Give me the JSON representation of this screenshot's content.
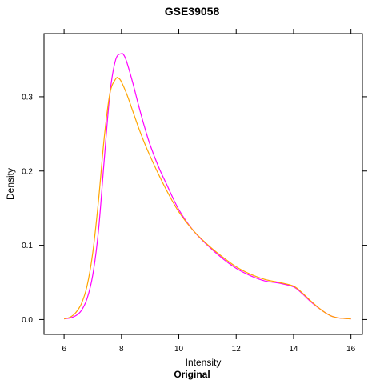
{
  "chart_data": {
    "type": "line",
    "title": "GSE39058",
    "xlabel": "Intensity",
    "ylabel": "Density",
    "sub": "Original",
    "xlim": [
      5.3,
      16.4
    ],
    "ylim": [
      -0.02,
      0.385
    ],
    "xticks": [
      6,
      8,
      10,
      12,
      14,
      16
    ],
    "yticks": [
      0.0,
      0.1,
      0.2,
      0.3
    ],
    "ytick_labels": [
      "0.0",
      "0.1",
      "0.2",
      "0.3"
    ],
    "grid": false,
    "legend": "none",
    "series": [
      {
        "color": "#ff00ff",
        "x": [
          6.0,
          6.2,
          6.4,
          6.6,
          6.8,
          7.0,
          7.2,
          7.4,
          7.6,
          7.8,
          8.0,
          8.1,
          8.2,
          8.4,
          8.6,
          8.8,
          9.0,
          9.3,
          9.6,
          10.0,
          10.5,
          11.0,
          11.5,
          12.0,
          12.5,
          13.0,
          13.5,
          14.0,
          14.3,
          14.6,
          15.0,
          15.3,
          15.6,
          16.0
        ],
        "y": [
          0.001,
          0.002,
          0.005,
          0.012,
          0.028,
          0.06,
          0.12,
          0.215,
          0.305,
          0.35,
          0.358,
          0.355,
          0.345,
          0.318,
          0.288,
          0.26,
          0.235,
          0.205,
          0.18,
          0.148,
          0.12,
          0.1,
          0.083,
          0.069,
          0.059,
          0.052,
          0.049,
          0.044,
          0.035,
          0.024,
          0.012,
          0.005,
          0.002,
          0.001
        ]
      },
      {
        "color": "#ffa500",
        "x": [
          6.0,
          6.2,
          6.4,
          6.6,
          6.8,
          7.0,
          7.2,
          7.4,
          7.6,
          7.8,
          7.9,
          8.0,
          8.2,
          8.4,
          8.6,
          8.8,
          9.0,
          9.3,
          9.6,
          10.0,
          10.5,
          11.0,
          11.5,
          12.0,
          12.5,
          13.0,
          13.5,
          14.0,
          14.3,
          14.6,
          15.0,
          15.3,
          15.6,
          16.0
        ],
        "y": [
          0.001,
          0.003,
          0.009,
          0.021,
          0.045,
          0.09,
          0.16,
          0.245,
          0.305,
          0.324,
          0.325,
          0.32,
          0.302,
          0.28,
          0.258,
          0.238,
          0.22,
          0.195,
          0.172,
          0.145,
          0.12,
          0.101,
          0.085,
          0.071,
          0.061,
          0.054,
          0.05,
          0.045,
          0.036,
          0.025,
          0.012,
          0.005,
          0.002,
          0.001
        ]
      }
    ]
  }
}
